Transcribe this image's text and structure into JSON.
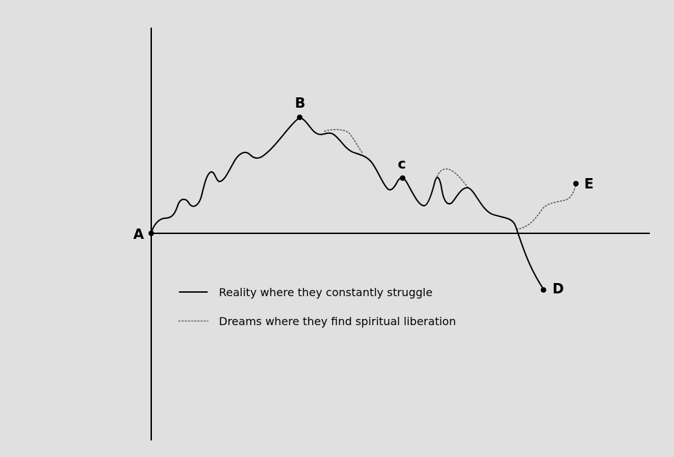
{
  "points": {
    "a": {
      "label": "A"
    },
    "b": {
      "label": "B"
    },
    "c": {
      "label": "c"
    },
    "d": {
      "label": "D"
    },
    "e": {
      "label": "E"
    }
  },
  "legend": {
    "reality": {
      "label": "Reality where they constantly struggle"
    },
    "dreams": {
      "label": "Dreams where they find spiritual liberation"
    }
  },
  "colors": {
    "background": "#e0e0e0",
    "reality_line": "#000000",
    "dream_line": "#5a5a5a"
  }
}
